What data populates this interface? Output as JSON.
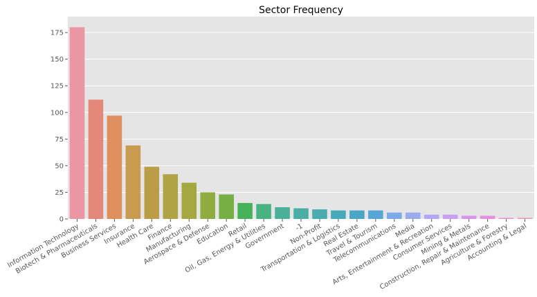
{
  "chart_data": {
    "type": "bar",
    "title": "Sector Frequency",
    "xlabel": "",
    "ylabel": "",
    "ylim": [
      0,
      190
    ],
    "yticks": [
      0,
      25,
      50,
      75,
      100,
      125,
      150,
      175
    ],
    "grid": true,
    "categories": [
      "Information Technology",
      "Biotech & Pharmaceuticals",
      "Business Services",
      "Insurance",
      "Health Care",
      "Finance",
      "Manufacturing",
      "Aerospace & Defense",
      "Education",
      "Retail",
      "Oil, Gas, Energy & Utilities",
      "Government",
      "-1",
      "Non-Profit",
      "Transportation & Logistics",
      "Real Estate",
      "Travel & Tourism",
      "Telecommunications",
      "Media",
      "Arts, Entertainment & Recreation",
      "Consumer Services",
      "Mining & Metals",
      "Construction, Repair & Maintenance",
      "Agriculture & Forestry",
      "Accounting & Legal"
    ],
    "values": [
      180,
      112,
      97,
      69,
      49,
      42,
      34,
      25,
      23,
      15,
      14,
      11,
      10,
      9,
      8,
      8,
      8,
      6,
      6,
      4,
      4,
      3,
      3,
      1,
      1
    ],
    "colors": [
      "#ea96a3",
      "#e3887a",
      "#e08f5f",
      "#c89b4f",
      "#bb9d48",
      "#b0a346",
      "#a3a840",
      "#8fac41",
      "#76b045",
      "#46b259",
      "#48b281",
      "#4ab09a",
      "#4aaea5",
      "#4aacae",
      "#4aa9b8",
      "#4ba6c5",
      "#58a6d8",
      "#7aaae9",
      "#9aabf0",
      "#b3a6f2",
      "#c89ff2",
      "#d895ec",
      "#e78de2",
      "#eb8fcd",
      "#ea94b8"
    ]
  }
}
